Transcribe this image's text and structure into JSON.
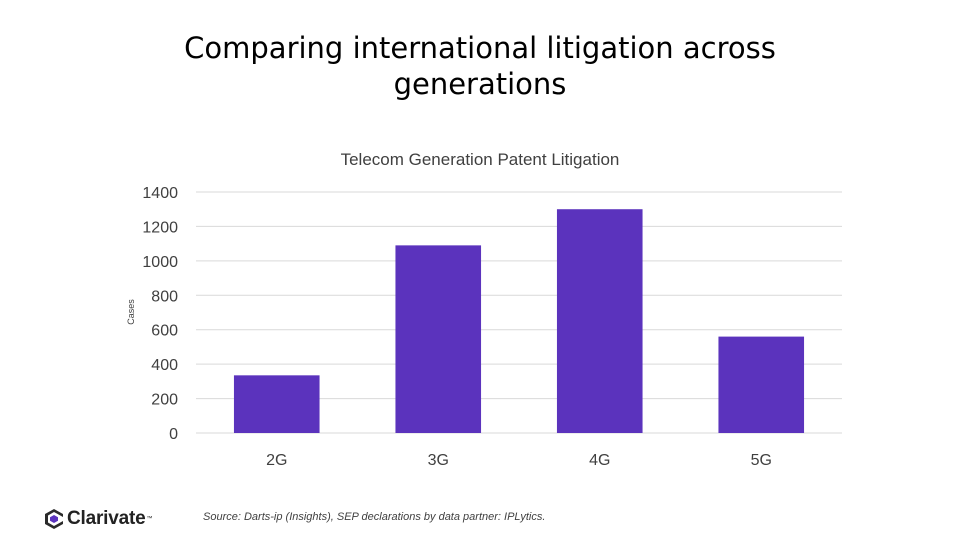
{
  "slide": {
    "title_lines": [
      "Comparing international litigation across",
      "generations"
    ],
    "source": "Source: Darts-ip (Insights), SEP declarations by data partner: IPLytics."
  },
  "logo": {
    "name": "Clarivate",
    "tm": "™",
    "icon": "clarivate-logo-icon"
  },
  "colors": {
    "bar": "#5b33bd",
    "grid": "#d9d9d9",
    "text": "#404040"
  },
  "chart_data": {
    "type": "bar",
    "title": "Telecom Generation Patent Litigation",
    "ylabel": "Cases",
    "xlabel": "",
    "categories": [
      "2G",
      "3G",
      "4G",
      "5G"
    ],
    "values": [
      335,
      1090,
      1300,
      560
    ],
    "ylim": [
      0,
      1400
    ],
    "yticks": [
      0,
      200,
      400,
      600,
      800,
      1000,
      1200,
      1400
    ],
    "grid": true,
    "legend": "none"
  }
}
